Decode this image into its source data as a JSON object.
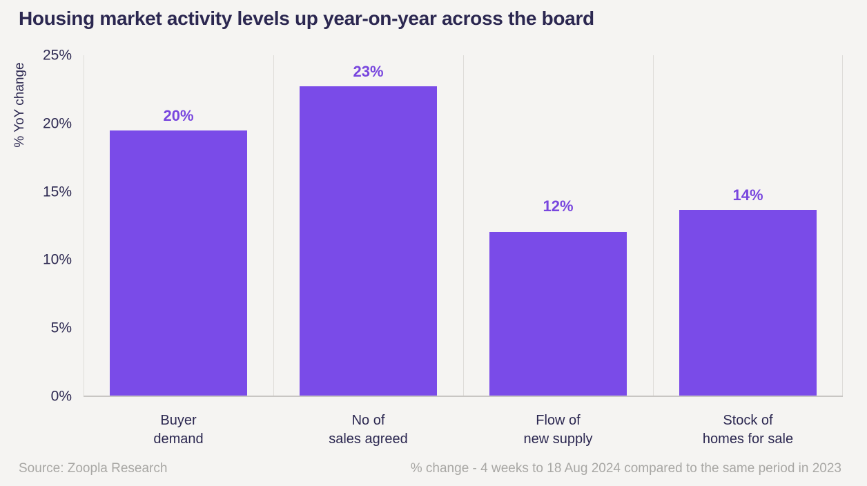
{
  "chart_data": {
    "type": "bar",
    "title": "Housing market activity levels up year-on-year across the board",
    "ylabel": "% YoY change",
    "xlabel": "",
    "categories": [
      "Buyer\ndemand",
      "No of\nsales agreed",
      "Flow of\nnew supply",
      "Stock of\nhomes for sale"
    ],
    "values": [
      20,
      23,
      12,
      14
    ],
    "value_labels": [
      "20%",
      "23%",
      "12%",
      "14%"
    ],
    "render_values": [
      19.5,
      22.7,
      12.05,
      13.65
    ],
    "ylim": [
      0,
      25
    ],
    "yticks": [
      0,
      5,
      10,
      15,
      20,
      25
    ],
    "ytick_labels": [
      "0%",
      "5%",
      "10%",
      "15%",
      "20%",
      "25%"
    ],
    "grid": "vertical panel separators only, no horizontal gridlines",
    "legend": "none"
  },
  "footer": {
    "source": "Source: Zoopla Research",
    "note": "% change - 4 weeks to 18 Aug 2024 compared to the same period in 2023"
  },
  "colors": {
    "background": "#F5F4F2",
    "ink": "#2B2750",
    "bar": "#7A4BE8",
    "bar_label": "#7846DE",
    "grid": "#DEDCD9",
    "axis_line": "#C8C6C3",
    "muted": "#A8A7A4"
  }
}
